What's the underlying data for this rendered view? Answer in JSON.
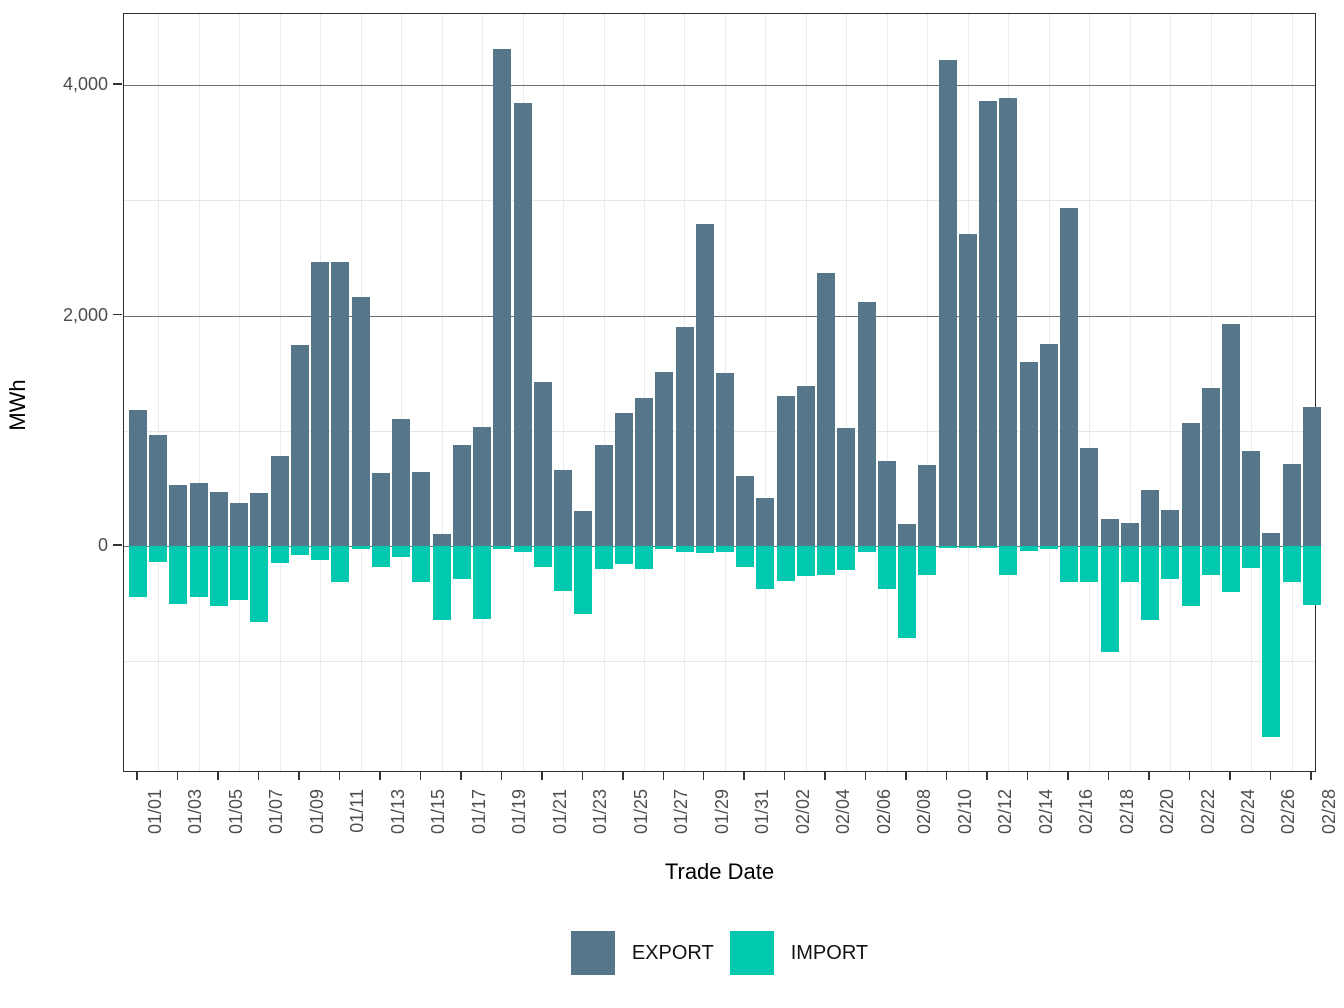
{
  "y_axis": {
    "label": "MWh",
    "tick_labels": [
      "0",
      "2,000",
      "4,000"
    ],
    "tick_values": [
      0,
      2000,
      4000
    ]
  },
  "x_axis": {
    "label": "Trade Date",
    "tick_labels": [
      "01/01",
      "01/03",
      "01/05",
      "01/07",
      "01/09",
      "01/11",
      "01/13",
      "01/15",
      "01/17",
      "01/19",
      "01/21",
      "01/23",
      "01/25",
      "01/27",
      "01/29",
      "01/31",
      "02/02",
      "02/04",
      "02/06",
      "02/08",
      "02/10",
      "02/12",
      "02/14",
      "02/16",
      "02/18",
      "02/20",
      "02/22",
      "02/24",
      "02/26",
      "02/28"
    ]
  },
  "legend": [
    {
      "label": "EXPORT",
      "color": "#557789"
    },
    {
      "label": "IMPORT",
      "color": "#00C9B0"
    }
  ],
  "colors": {
    "export": "#557789",
    "import": "#00C9B0",
    "grid_major": "#6f6f6f",
    "grid_minor": "#e7e7e7",
    "panel_border": "#2f2f2f",
    "tick_text": "#4d4d4d",
    "title_text": "#000000"
  },
  "chart_data": {
    "type": "bar",
    "title": "",
    "xlabel": "Trade Date",
    "ylabel": "MWh",
    "ylim": [
      -1970,
      4620
    ],
    "grid": true,
    "legend_position": "bottom",
    "categories": [
      "01/01",
      "01/02",
      "01/03",
      "01/04",
      "01/05",
      "01/06",
      "01/07",
      "01/08",
      "01/09",
      "01/10",
      "01/11",
      "01/12",
      "01/13",
      "01/14",
      "01/15",
      "01/16",
      "01/17",
      "01/18",
      "01/19",
      "01/20",
      "01/21",
      "01/22",
      "01/23",
      "01/24",
      "01/25",
      "01/26",
      "01/27",
      "01/28",
      "01/29",
      "01/30",
      "01/31",
      "02/01",
      "02/02",
      "02/03",
      "02/04",
      "02/05",
      "02/06",
      "02/07",
      "02/08",
      "02/09",
      "02/10",
      "02/11",
      "02/12",
      "02/13",
      "02/14",
      "02/15",
      "02/16",
      "02/17",
      "02/18",
      "02/19",
      "02/20",
      "02/21",
      "02/22",
      "02/23",
      "02/24",
      "02/25",
      "02/26",
      "02/27",
      "02/28"
    ],
    "series": [
      {
        "name": "EXPORT",
        "color": "#557789",
        "values": [
          1180,
          960,
          530,
          550,
          470,
          370,
          460,
          780,
          1740,
          2460,
          2460,
          2160,
          630,
          1100,
          640,
          100,
          880,
          1030,
          4310,
          3840,
          1420,
          660,
          300,
          880,
          1150,
          1280,
          1510,
          1900,
          2790,
          1500,
          610,
          420,
          1300,
          1390,
          2370,
          1020,
          2120,
          740,
          190,
          700,
          4220,
          2710,
          3860,
          3890,
          1600,
          1750,
          2930,
          850,
          230,
          200,
          490,
          310,
          1070,
          1370,
          1930,
          820,
          110,
          710,
          1210
        ]
      },
      {
        "name": "IMPORT",
        "color": "#00C9B0",
        "values": [
          -440,
          -140,
          -500,
          -440,
          -520,
          -470,
          -660,
          -150,
          -80,
          -120,
          -310,
          -30,
          -185,
          -95,
          -310,
          -640,
          -290,
          -630,
          -30,
          -50,
          -180,
          -390,
          -590,
          -200,
          -160,
          -200,
          -30,
          -55,
          -60,
          -55,
          -180,
          -370,
          -300,
          -260,
          -250,
          -210,
          -55,
          -370,
          -800,
          -255,
          -20,
          -15,
          -20,
          -250,
          -45,
          -30,
          -310,
          -310,
          -920,
          -310,
          -640,
          -290,
          -520,
          -250,
          -400,
          -190,
          -1660,
          -310,
          -510
        ]
      }
    ]
  }
}
